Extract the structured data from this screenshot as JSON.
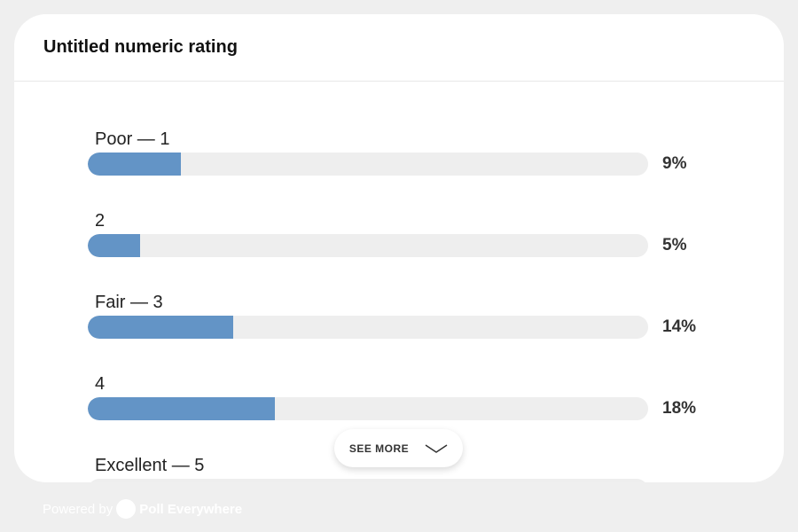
{
  "title": "Untitled numeric rating",
  "colors": {
    "bar": "#6394c6",
    "track": "#eeeeee"
  },
  "see_more": "SEE MORE",
  "footer": {
    "powered": "Powered by",
    "brand": "Poll Everywhere"
  },
  "chart_data": {
    "type": "bar",
    "orientation": "horizontal",
    "categories": [
      "Poor — 1",
      "2",
      "Fair — 3",
      "4",
      "Excellent — 5"
    ],
    "values": [
      9,
      5,
      14,
      18,
      null
    ],
    "labels": [
      "9%",
      "5%",
      "14%",
      "18%",
      ""
    ]
  }
}
